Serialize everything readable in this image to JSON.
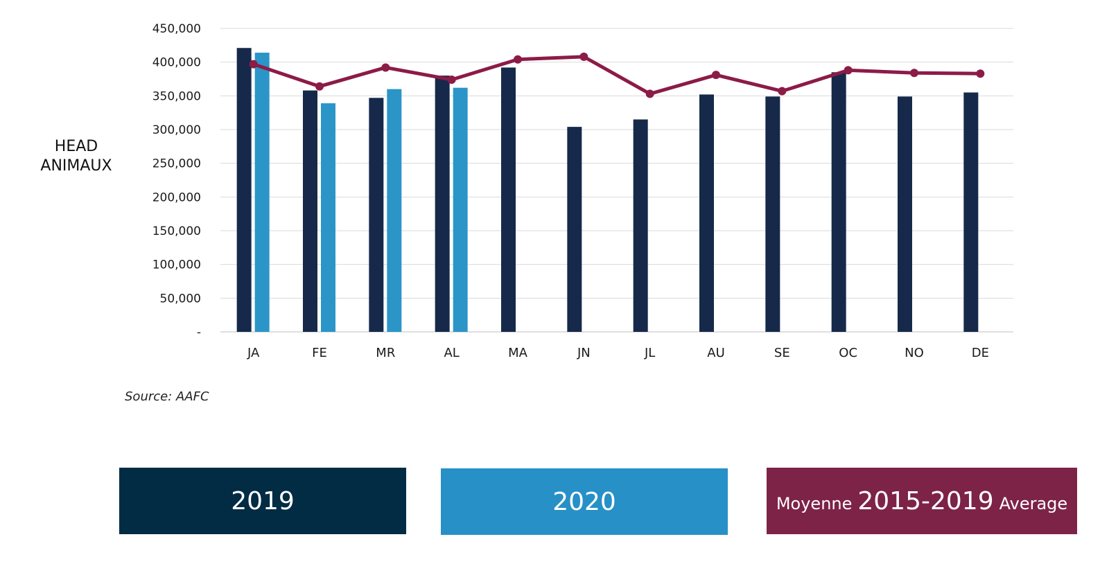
{
  "chart_data": {
    "type": "bar",
    "categories": [
      "JA",
      "FE",
      "MR",
      "AL",
      "MA",
      "JN",
      "JL",
      "AU",
      "SE",
      "OC",
      "NO",
      "DE"
    ],
    "series": [
      {
        "name": "2019",
        "type": "bar",
        "color": "#16294a",
        "values": [
          421000,
          358000,
          347000,
          380000,
          392000,
          304000,
          315000,
          352000,
          349000,
          385000,
          349000,
          355000
        ]
      },
      {
        "name": "2020",
        "type": "bar",
        "color": "#2b95c8",
        "values": [
          414000,
          339000,
          360000,
          362000,
          null,
          null,
          null,
          null,
          null,
          null,
          null,
          null
        ]
      },
      {
        "name": "Moyenne 2015-2019 Average",
        "type": "line",
        "color": "#8c1b47",
        "values": [
          397000,
          364000,
          392000,
          374000,
          404000,
          408000,
          353000,
          381000,
          357000,
          388000,
          384000,
          383000
        ]
      }
    ],
    "ylim": [
      0,
      450000
    ],
    "y_ticks": [
      {
        "value": 0,
        "label": "-"
      },
      {
        "value": 50000,
        "label": "50,000"
      },
      {
        "value": 100000,
        "label": "100,000"
      },
      {
        "value": 150000,
        "label": "150,000"
      },
      {
        "value": 200000,
        "label": "200,000"
      },
      {
        "value": 250000,
        "label": "250,000"
      },
      {
        "value": 300000,
        "label": "300,000"
      },
      {
        "value": 350000,
        "label": "350,000"
      },
      {
        "value": 400000,
        "label": "400,000"
      },
      {
        "value": 450000,
        "label": "450,000"
      }
    ],
    "ylabel_lines": [
      "HEAD",
      "ANIMAUX"
    ],
    "grid": true,
    "legend_position": "bottom"
  },
  "source": "Source: AAFC",
  "legend": {
    "y2019": {
      "label": "2019",
      "color": "#022b44"
    },
    "y2020": {
      "label": "2020",
      "color": "#2790c6"
    },
    "average": {
      "prefix": "Moyenne",
      "label": "2015-2019",
      "suffix": "Average",
      "color": "#7d2347"
    }
  }
}
